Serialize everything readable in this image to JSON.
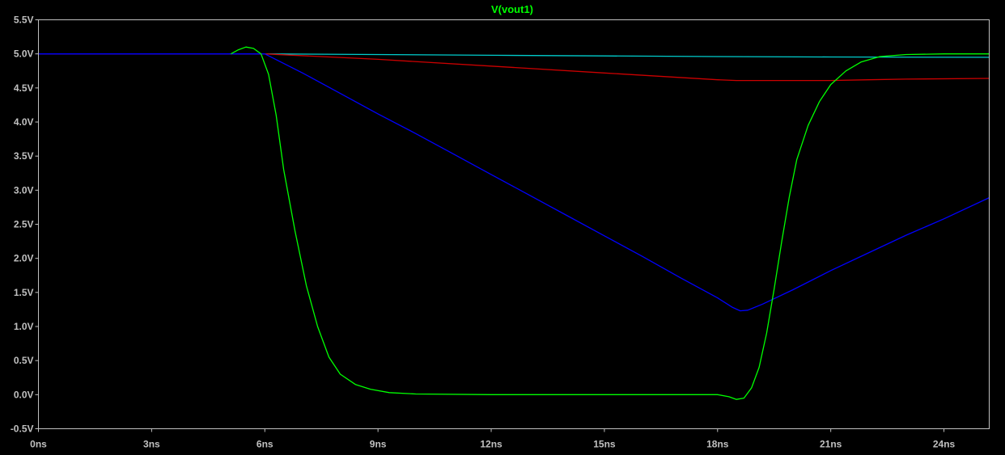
{
  "chart_data": {
    "type": "line",
    "title": "V(vout1)",
    "xlabel": "",
    "ylabel": "",
    "xlim": [
      0,
      25.2
    ],
    "ylim": [
      -0.5,
      5.5
    ],
    "grid": false,
    "legend": [
      {
        "label": "V(vout1)",
        "color": "#00ff00"
      }
    ],
    "x_ticks": [
      {
        "value": 0,
        "label": "0ns"
      },
      {
        "value": 3,
        "label": "3ns"
      },
      {
        "value": 6,
        "label": "6ns"
      },
      {
        "value": 9,
        "label": "9ns"
      },
      {
        "value": 12,
        "label": "12ns"
      },
      {
        "value": 15,
        "label": "15ns"
      },
      {
        "value": 18,
        "label": "18ns"
      },
      {
        "value": 21,
        "label": "21ns"
      },
      {
        "value": 24,
        "label": "24ns"
      }
    ],
    "y_ticks": [
      {
        "value": 5.5,
        "label": "5.5V"
      },
      {
        "value": 5.0,
        "label": "5.0V"
      },
      {
        "value": 4.5,
        "label": "4.5V"
      },
      {
        "value": 4.0,
        "label": "4.0V"
      },
      {
        "value": 3.5,
        "label": "3.5V"
      },
      {
        "value": 3.0,
        "label": "3.0V"
      },
      {
        "value": 2.5,
        "label": "2.5V"
      },
      {
        "value": 2.0,
        "label": "2.0V"
      },
      {
        "value": 1.5,
        "label": "1.5V"
      },
      {
        "value": 1.0,
        "label": "1.0V"
      },
      {
        "value": 0.5,
        "label": "0.5V"
      },
      {
        "value": 0.0,
        "label": "0.0V"
      },
      {
        "value": -0.5,
        "label": "-0.5V"
      }
    ],
    "series": [
      {
        "color": "#00cccc",
        "points": [
          [
            0,
            5.0
          ],
          [
            5.0,
            5.0
          ],
          [
            6.0,
            5.0
          ],
          [
            9,
            4.99
          ],
          [
            12,
            4.98
          ],
          [
            15,
            4.97
          ],
          [
            18,
            4.96
          ],
          [
            21,
            4.955
          ],
          [
            25.2,
            4.95
          ]
        ]
      },
      {
        "color": "#cc0000",
        "points": [
          [
            0,
            5.0
          ],
          [
            5.5,
            5.0
          ],
          [
            6.0,
            5.0
          ],
          [
            9,
            4.92
          ],
          [
            12,
            4.82
          ],
          [
            15,
            4.72
          ],
          [
            18,
            4.62
          ],
          [
            18.5,
            4.61
          ],
          [
            20,
            4.61
          ],
          [
            21,
            4.61
          ],
          [
            22,
            4.62
          ],
          [
            23,
            4.63
          ],
          [
            25.2,
            4.64
          ]
        ]
      },
      {
        "color": "#0000ff",
        "points": [
          [
            0,
            5.0
          ],
          [
            5.5,
            5.0
          ],
          [
            6.0,
            5.0
          ],
          [
            7,
            4.72
          ],
          [
            8,
            4.42
          ],
          [
            9,
            4.12
          ],
          [
            10,
            3.83
          ],
          [
            11,
            3.53
          ],
          [
            12,
            3.23
          ],
          [
            13,
            2.93
          ],
          [
            14,
            2.63
          ],
          [
            15,
            2.33
          ],
          [
            16,
            2.03
          ],
          [
            17,
            1.72
          ],
          [
            18,
            1.42
          ],
          [
            18.4,
            1.28
          ],
          [
            18.6,
            1.23
          ],
          [
            18.8,
            1.24
          ],
          [
            19.2,
            1.33
          ],
          [
            20,
            1.54
          ],
          [
            21,
            1.82
          ],
          [
            22,
            2.08
          ],
          [
            23,
            2.34
          ],
          [
            24,
            2.58
          ],
          [
            25.2,
            2.89
          ]
        ]
      },
      {
        "color": "#00ff00",
        "points": [
          [
            5.1,
            5.0
          ],
          [
            5.3,
            5.06
          ],
          [
            5.5,
            5.1
          ],
          [
            5.7,
            5.08
          ],
          [
            5.9,
            5.0
          ],
          [
            6.1,
            4.7
          ],
          [
            6.3,
            4.1
          ],
          [
            6.5,
            3.3
          ],
          [
            6.8,
            2.4
          ],
          [
            7.1,
            1.6
          ],
          [
            7.4,
            1.0
          ],
          [
            7.7,
            0.55
          ],
          [
            8.0,
            0.3
          ],
          [
            8.4,
            0.15
          ],
          [
            8.8,
            0.08
          ],
          [
            9.3,
            0.03
          ],
          [
            10,
            0.01
          ],
          [
            12,
            0.0
          ],
          [
            15,
            0.0
          ],
          [
            17.5,
            0.0
          ],
          [
            18.0,
            0.0
          ],
          [
            18.3,
            -0.03
          ],
          [
            18.5,
            -0.07
          ],
          [
            18.7,
            -0.05
          ],
          [
            18.9,
            0.1
          ],
          [
            19.1,
            0.4
          ],
          [
            19.3,
            0.9
          ],
          [
            19.5,
            1.55
          ],
          [
            19.7,
            2.25
          ],
          [
            19.9,
            2.9
          ],
          [
            20.1,
            3.45
          ],
          [
            20.4,
            3.95
          ],
          [
            20.7,
            4.3
          ],
          [
            21.0,
            4.55
          ],
          [
            21.4,
            4.75
          ],
          [
            21.8,
            4.88
          ],
          [
            22.3,
            4.96
          ],
          [
            23,
            4.99
          ],
          [
            24,
            5.0
          ],
          [
            25.2,
            5.0
          ]
        ]
      }
    ]
  }
}
